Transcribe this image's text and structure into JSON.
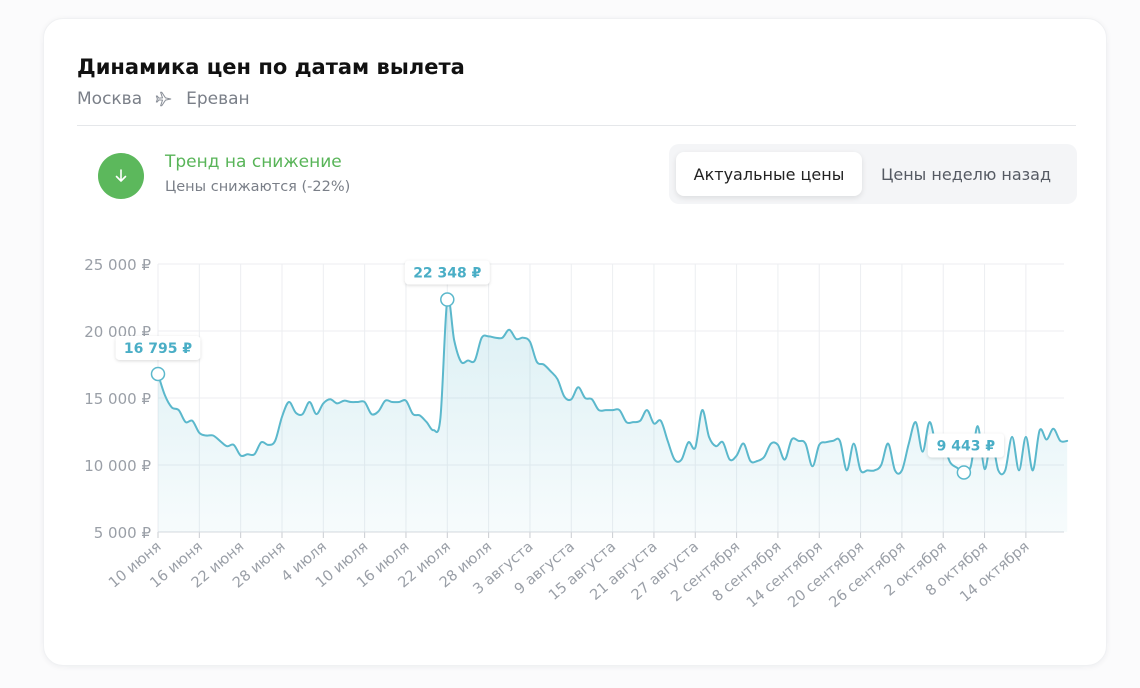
{
  "header": {
    "title": "Динамика цен по датам вылета",
    "route_from": "Москва",
    "route_to": "Ереван"
  },
  "trend": {
    "icon": "arrow-down-icon",
    "title": "Тренд на снижение",
    "subtitle": "Цены снижаются (-22%)",
    "color": "#5cb85c"
  },
  "toggle": {
    "active": "Актуальные цены",
    "inactive": "Цены неделю назад"
  },
  "colors": {
    "line": "#5bb8cc",
    "area": "#e4f3f8",
    "marker_label": "#4aaec6"
  },
  "chart_data": {
    "type": "area",
    "x_ticks": [
      "10 июня",
      "16 июня",
      "22 июня",
      "28 июня",
      "4 июля",
      "10 июля",
      "16 июля",
      "22 июля",
      "28 июля",
      "3 августа",
      "9 августа",
      "15 августа",
      "21 августа",
      "27 августа",
      "2 сентября",
      "8 сентября",
      "14 сентября",
      "20 сентября",
      "26 сентября",
      "2 октября",
      "8 октября",
      "14 октября"
    ],
    "y_ticks": [
      "25 000 ₽",
      "20 000 ₽",
      "15 000 ₽",
      "10 000 ₽",
      "5 000 ₽"
    ],
    "y_tick_values": [
      25000,
      20000,
      15000,
      10000,
      5000
    ],
    "ylim": [
      5000,
      25000
    ],
    "series": [
      {
        "x_day": [
          0,
          1,
          2,
          3,
          4,
          5,
          6,
          7,
          8,
          9,
          10,
          11,
          12,
          13,
          14,
          15,
          16,
          17,
          18,
          19,
          20,
          21,
          22,
          23,
          24,
          25,
          26,
          27,
          28,
          29,
          30,
          31,
          32,
          33,
          34,
          35,
          36,
          37,
          38,
          39,
          40,
          41,
          42,
          43,
          44,
          45,
          46,
          47,
          48,
          49,
          50,
          51,
          52,
          53,
          54,
          55,
          56,
          57,
          58,
          59,
          60,
          61,
          62,
          63,
          64,
          65,
          66,
          67,
          68,
          69,
          70,
          71,
          72,
          73,
          74,
          75,
          76,
          77,
          78,
          79,
          80,
          81,
          82,
          83,
          84,
          85,
          86,
          87,
          88,
          89,
          90,
          91,
          92,
          93,
          94,
          95,
          96,
          97,
          98,
          99,
          100,
          101,
          102,
          103,
          104,
          105,
          106,
          107,
          108,
          109,
          110,
          111,
          112,
          113,
          114,
          115,
          116,
          117,
          118,
          119,
          120,
          121,
          122,
          123,
          124,
          125,
          126,
          127,
          128,
          129,
          130,
          131,
          132
        ],
        "y": [
          16795,
          15200,
          14300,
          14100,
          13200,
          13300,
          12400,
          12200,
          12200,
          11800,
          11400,
          11500,
          10700,
          10800,
          10800,
          11700,
          11500,
          11800,
          13600,
          14700,
          13900,
          13800,
          14700,
          13800,
          14600,
          14900,
          14600,
          14800,
          14700,
          14700,
          14700,
          13800,
          14000,
          14800,
          14700,
          14700,
          14800,
          13800,
          13700,
          13200,
          12600,
          13500,
          22348,
          19300,
          17700,
          17800,
          17800,
          19500,
          19600,
          19500,
          19500,
          20100,
          19400,
          19500,
          19200,
          17700,
          17500,
          17000,
          16400,
          15100,
          14900,
          15800,
          15000,
          14900,
          14100,
          14100,
          14100,
          14100,
          13200,
          13200,
          13300,
          14100,
          13100,
          13300,
          11800,
          10400,
          10400,
          11700,
          11300,
          14100,
          12100,
          11400,
          11700,
          10400,
          10700,
          11600,
          10300,
          10300,
          10600,
          11600,
          11500,
          10400,
          11900,
          11800,
          11600,
          9900,
          11500,
          11700,
          11800,
          11800,
          9600,
          11600,
          9600,
          9600,
          9600,
          10000,
          11600,
          9600,
          9600,
          11600,
          13200,
          11000,
          13200,
          11500,
          11600,
          10200,
          9800,
          9443,
          9900,
          12900,
          9700,
          11900,
          9600,
          9600,
          12100,
          9600,
          12100,
          9600,
          12600,
          11900,
          12700,
          11800,
          11800
        ]
      }
    ],
    "markers": [
      {
        "label": "16 795 ₽",
        "x_day": 0,
        "value": 16795
      },
      {
        "label": "22 348 ₽",
        "x_day": 42,
        "value": 22348
      },
      {
        "label": "9 443 ₽",
        "x_day": 117,
        "value": 9443
      }
    ],
    "grid": true
  }
}
